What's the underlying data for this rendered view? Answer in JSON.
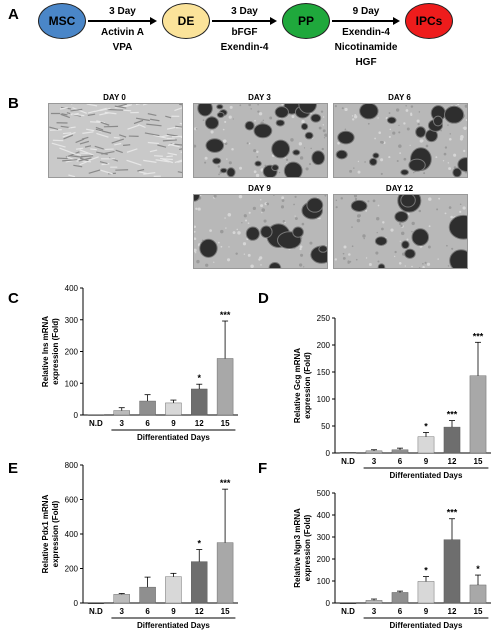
{
  "panel_a": {
    "label": "A",
    "stages": [
      {
        "name": "MSC",
        "color": "#4a86c8"
      },
      {
        "name": "DE",
        "color": "#fbe39a"
      },
      {
        "name": "PP",
        "color": "#1fa83c"
      },
      {
        "name": "IPCs",
        "color": "#ee1c1c"
      }
    ],
    "steps": [
      {
        "days": "3 Day",
        "factors": [
          "Activin A",
          "VPA"
        ]
      },
      {
        "days": "3 Day",
        "factors": [
          "bFGF",
          "Exendin-4"
        ]
      },
      {
        "days": "9 Day",
        "factors": [
          "Exendin-4",
          "Nicotinamide",
          "HGF"
        ]
      }
    ]
  },
  "panel_b": {
    "label": "B",
    "images": [
      {
        "day": "DAY 0",
        "style": "fibroblast"
      },
      {
        "day": "DAY 3",
        "style": "cluster-small"
      },
      {
        "day": "DAY 6",
        "style": "cluster-medium"
      },
      {
        "day": "DAY 9",
        "style": "cluster-large"
      },
      {
        "day": "DAY 12",
        "style": "cluster-large"
      }
    ]
  },
  "chart_data": [
    {
      "panel": "C",
      "type": "bar",
      "ylabel": "Relative Ins mRNA expression (Fold)",
      "xlabel": "Differentiated Days",
      "categories": [
        "N.D",
        "3",
        "6",
        "9",
        "12",
        "15"
      ],
      "values": [
        1,
        14,
        44,
        38,
        82,
        178
      ],
      "errors": [
        0,
        9,
        20,
        9,
        15,
        118
      ],
      "significance": [
        "",
        "",
        "",
        "",
        "*",
        "***"
      ],
      "bar_colors": [
        "#000000",
        "#bbbbbb",
        "#8f8f8f",
        "#d8d8d8",
        "#6e6e6e",
        "#a8a8a8"
      ],
      "ylim": [
        0,
        400
      ],
      "yticks": [
        0,
        100,
        200,
        300,
        400
      ]
    },
    {
      "panel": "D",
      "type": "bar",
      "ylabel": "Relative Gcg mRNA expression (Fold)",
      "xlabel": "Differentiated Days",
      "categories": [
        "N.D",
        "3",
        "6",
        "9",
        "12",
        "15"
      ],
      "values": [
        1,
        4,
        6,
        30,
        48,
        143
      ],
      "errors": [
        0,
        2,
        3,
        8,
        12,
        62
      ],
      "significance": [
        "",
        "",
        "",
        "*",
        "***",
        "***"
      ],
      "bar_colors": [
        "#000000",
        "#bbbbbb",
        "#8f8f8f",
        "#d8d8d8",
        "#6e6e6e",
        "#a8a8a8"
      ],
      "ylim": [
        0,
        250
      ],
      "yticks": [
        0,
        50,
        100,
        150,
        200,
        250
      ]
    },
    {
      "panel": "E",
      "type": "bar",
      "ylabel": "Relative Pdx1 mRNA expression (Fold)",
      "xlabel": "Differentiated Days",
      "categories": [
        "N.D",
        "3",
        "6",
        "9",
        "12",
        "15"
      ],
      "values": [
        0,
        50,
        92,
        152,
        240,
        350
      ],
      "errors": [
        0,
        5,
        58,
        20,
        70,
        310
      ],
      "significance": [
        "",
        "",
        "",
        "",
        "*",
        "***"
      ],
      "bar_colors": [
        "#000000",
        "#bbbbbb",
        "#8f8f8f",
        "#d8d8d8",
        "#6e6e6e",
        "#a8a8a8"
      ],
      "ylim": [
        0,
        800
      ],
      "yticks": [
        0,
        200,
        400,
        600,
        800
      ]
    },
    {
      "panel": "F",
      "type": "bar",
      "ylabel": "Relative Ngn3 mRNA expression (Fold)",
      "xlabel": "Differentiated Days",
      "categories": [
        "N.D",
        "3",
        "6",
        "9",
        "12",
        "15"
      ],
      "values": [
        0,
        12,
        48,
        98,
        288,
        82
      ],
      "errors": [
        0,
        6,
        6,
        22,
        95,
        45
      ],
      "significance": [
        "",
        "",
        "",
        "*",
        "***",
        "*"
      ],
      "bar_colors": [
        "#000000",
        "#bbbbbb",
        "#8f8f8f",
        "#d8d8d8",
        "#6e6e6e",
        "#a8a8a8"
      ],
      "ylim": [
        0,
        500
      ],
      "yticks": [
        0,
        100,
        200,
        300,
        400,
        500
      ]
    }
  ]
}
